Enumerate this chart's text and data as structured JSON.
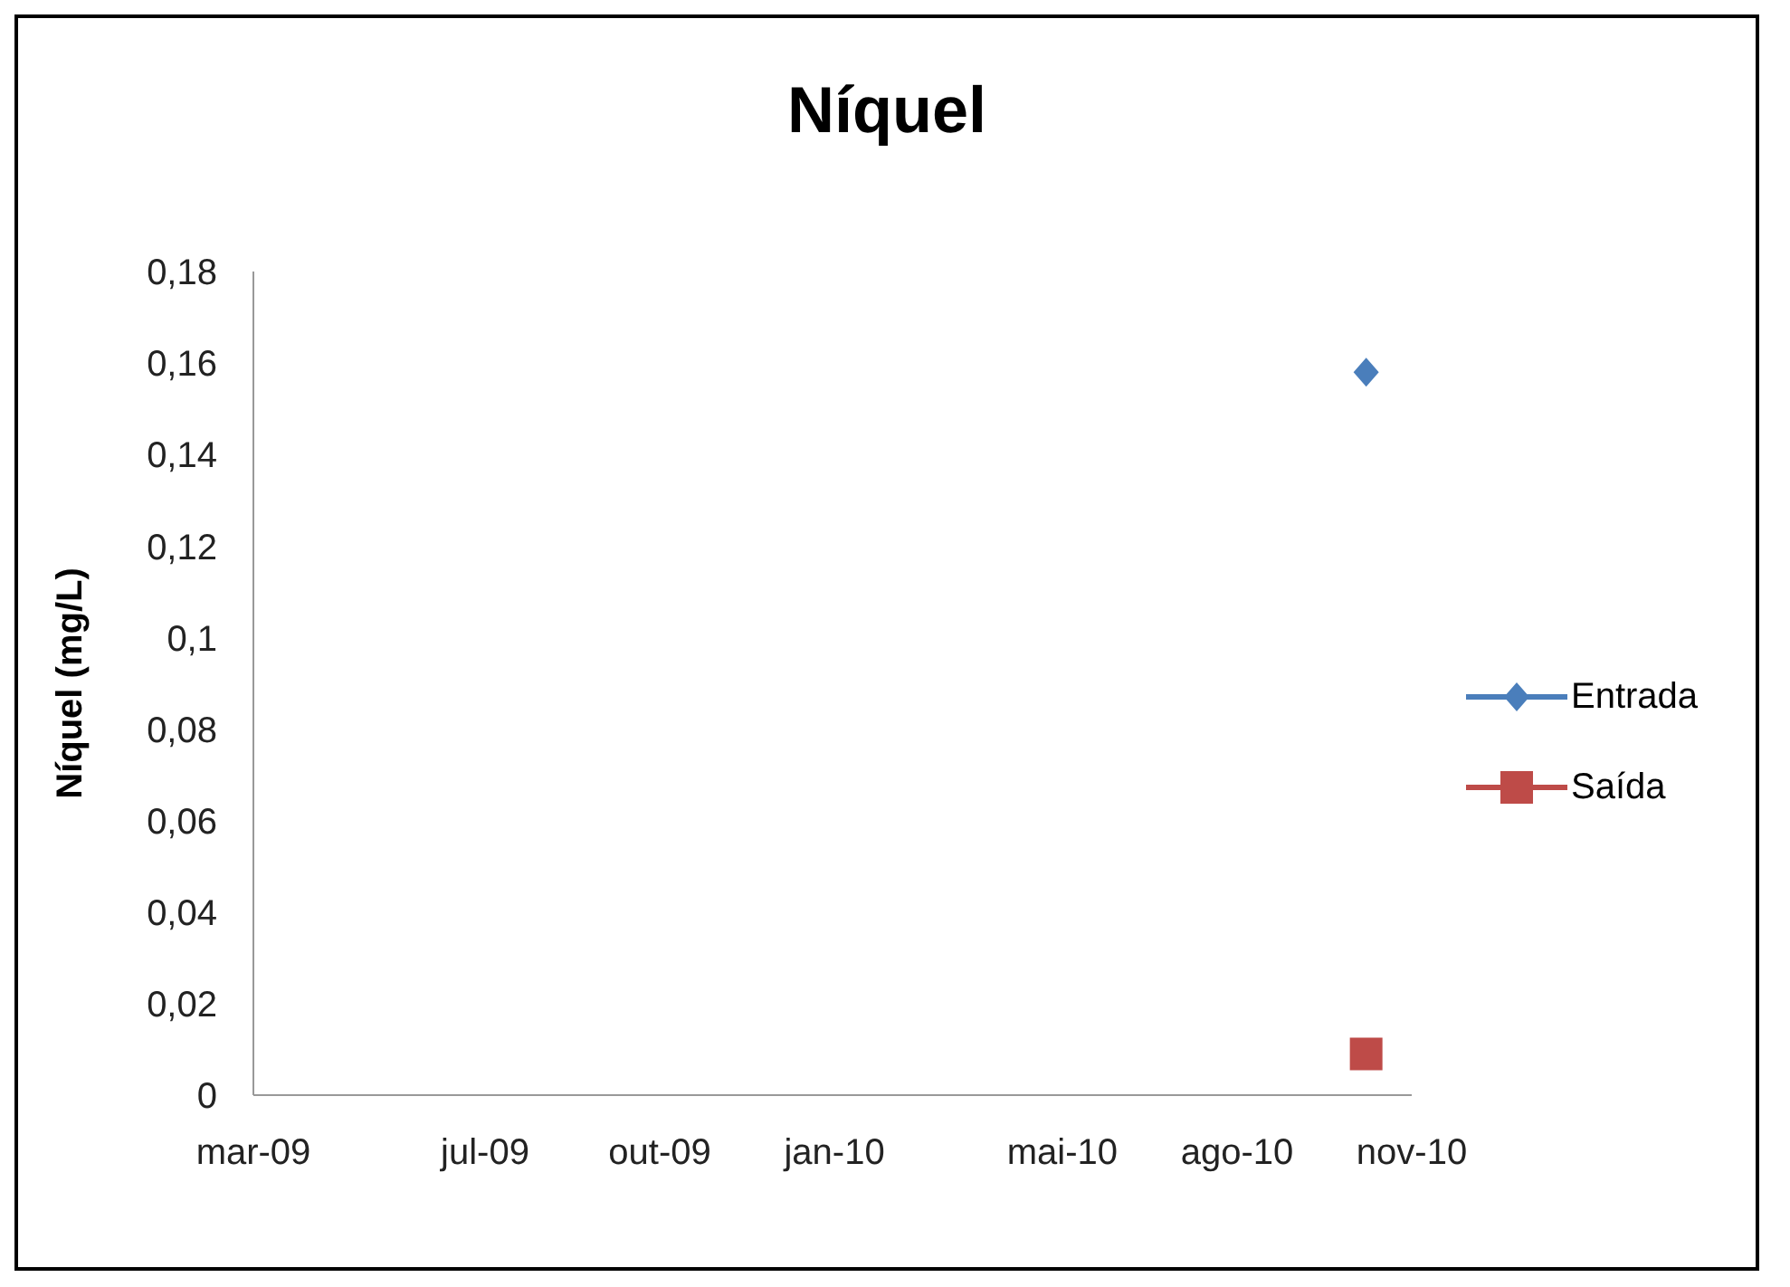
{
  "chart_data": {
    "type": "scatter",
    "title": "Níquel",
    "ylabel": "Níquel (mg/L)",
    "x": [
      "2010-10-08"
    ],
    "series": [
      {
        "name": "Entrada",
        "color": "#4a7ebb",
        "values": [
          0.158
        ],
        "marker": "diamond"
      },
      {
        "name": "Saída",
        "color": "#be4b48",
        "values": [
          0.009
        ],
        "marker": "square"
      }
    ],
    "xlim": [
      "2009-03-01",
      "2010-11-01"
    ],
    "xticks": [
      {
        "value": "2009-03-01",
        "label": "mar-09"
      },
      {
        "value": "2009-07-01",
        "label": "jul-09"
      },
      {
        "value": "2009-10-01",
        "label": "out-09"
      },
      {
        "value": "2010-01-01",
        "label": "jan-10"
      },
      {
        "value": "2010-05-01",
        "label": "mai-10"
      },
      {
        "value": "2010-08-01",
        "label": "ago-10"
      },
      {
        "value": "2010-11-01",
        "label": "nov-10"
      }
    ],
    "ylim": [
      0,
      0.18
    ],
    "yticks": [
      0,
      {
        "value": 0.02,
        "label": "0,02"
      },
      {
        "value": 0.04,
        "label": "0,04"
      },
      {
        "value": 0.06,
        "label": "0,06"
      },
      {
        "value": 0.08,
        "label": "0,08"
      },
      {
        "value": 0.1,
        "label": "0,1"
      },
      {
        "value": 0.12,
        "label": "0,12"
      },
      {
        "value": 0.14,
        "label": "0,14"
      },
      {
        "value": 0.16,
        "label": "0,16"
      },
      {
        "value": 0.18,
        "label": "0,18"
      }
    ],
    "grid": false,
    "legend": "right"
  }
}
